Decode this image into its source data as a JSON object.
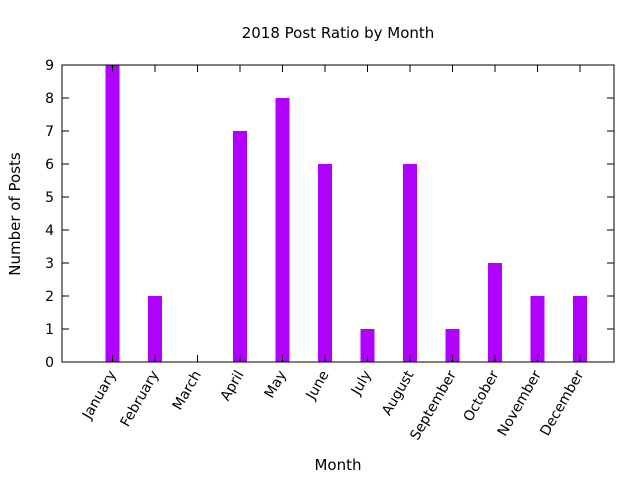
{
  "chart_data": {
    "type": "bar",
    "title": "2018 Post Ratio by Month",
    "xlabel": "Month",
    "ylabel": "Number of Posts",
    "categories": [
      "January",
      "February",
      "March",
      "April",
      "May",
      "June",
      "July",
      "August",
      "September",
      "October",
      "November",
      "December"
    ],
    "values": [
      9,
      2,
      0,
      7,
      8,
      6,
      1,
      6,
      1,
      3,
      2,
      2
    ],
    "ylim": [
      0,
      9
    ],
    "yticks": [
      "0",
      "1",
      "2",
      "3",
      "4",
      "5",
      "6",
      "7",
      "8",
      "9"
    ],
    "bar_color": "#b000ff",
    "grid": false,
    "legend": "none"
  }
}
